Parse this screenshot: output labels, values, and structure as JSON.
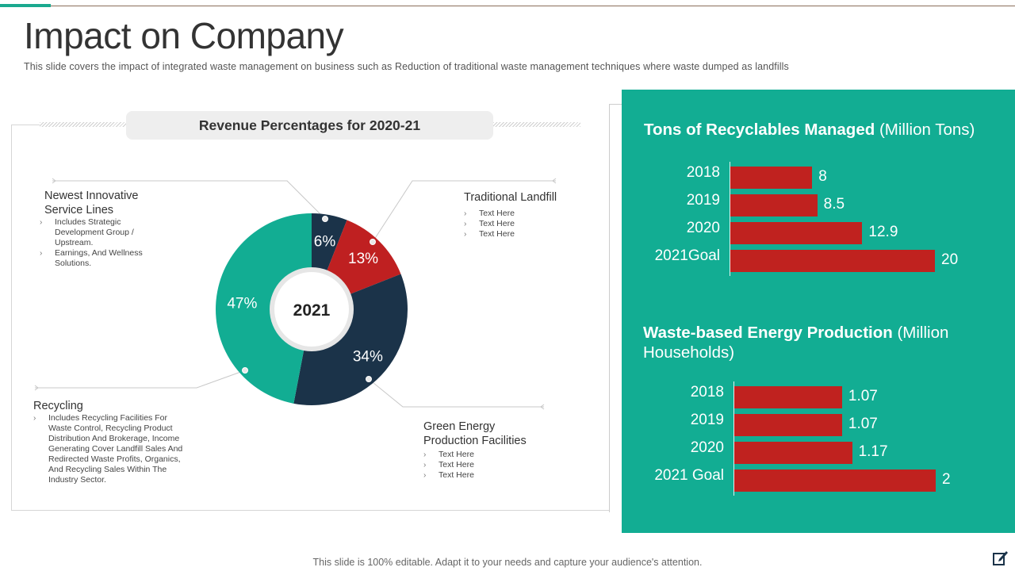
{
  "page": {
    "title": "Impact on Company",
    "subtitle": "This slide covers the impact of integrated waste management on business such as Reduction of traditional waste management techniques where waste dumped as landfills",
    "footer": "This slide is 100% editable. Adapt it to your needs and capture your audience's attention."
  },
  "colors": {
    "accent": "#1aa98f",
    "panel_green": "#12ad93",
    "bar_red": "#c0221f",
    "donut_navy": "#1b3349",
    "donut_red": "#bf2021",
    "donut_green": "#12ad93"
  },
  "left": {
    "chart_title": "Revenue Percentages for 2020-21",
    "center_label": "2021",
    "callouts": {
      "innovative": {
        "title": "Newest Innovative Service Lines",
        "bullets": [
          "Includes Strategic Development Group / Upstream.",
          "Earnings, And Wellness Solutions."
        ]
      },
      "landfill": {
        "title": "Traditional Landfill",
        "bullets": [
          "Text Here",
          "Text Here",
          "Text Here"
        ]
      },
      "recycling": {
        "title": "Recycling",
        "bullets": [
          "Includes Recycling Facilities For Waste Control, Recycling Product Distribution And Brokerage, Income Generating Cover Landfill Sales And Redirected Waste Profits, Organics, And Recycling Sales Within The Industry Sector."
        ]
      },
      "green_energy": {
        "title": "Green Energy Production Facilities",
        "bullets": [
          "Text Here",
          "Text Here",
          "Text Here"
        ]
      }
    }
  },
  "right": {
    "recyclables": {
      "heading_bold": "Tons of Recyclables Managed",
      "heading_rest": " (Million Tons)"
    },
    "energy": {
      "heading_bold": "Waste-based Energy Production",
      "heading_rest": " (Million Households)"
    }
  },
  "chart_data": [
    {
      "type": "pie",
      "title": "Revenue Percentages for 2020-21",
      "center_label": "2021",
      "categories": [
        "Newest Innovative Service Lines",
        "Traditional Landfill",
        "Green Energy Production Facilities",
        "Recycling"
      ],
      "values": [
        6,
        13,
        34,
        47
      ],
      "labels": [
        "6%",
        "13%",
        "34%",
        "47%"
      ],
      "colors": [
        "#1b3349",
        "#bf2021",
        "#1b3349",
        "#12ad93"
      ]
    },
    {
      "type": "bar",
      "orientation": "horizontal",
      "title": "Tons of Recyclables Managed (Million Tons)",
      "categories": [
        "2018",
        "2019",
        "2020",
        "2021Goal"
      ],
      "values": [
        8,
        8.5,
        12.9,
        20
      ],
      "value_labels": [
        "8",
        "8.5",
        "12.9",
        "20"
      ],
      "xlim": [
        0,
        20
      ]
    },
    {
      "type": "bar",
      "orientation": "horizontal",
      "title": "Waste-based Energy Production (Million Households)",
      "categories": [
        "2018",
        "2019",
        "2020",
        "2021 Goal"
      ],
      "values": [
        1.07,
        1.07,
        1.17,
        2
      ],
      "value_labels": [
        "1.07",
        "1.07",
        "1.17",
        "2"
      ],
      "xlim": [
        0,
        2
      ]
    }
  ]
}
